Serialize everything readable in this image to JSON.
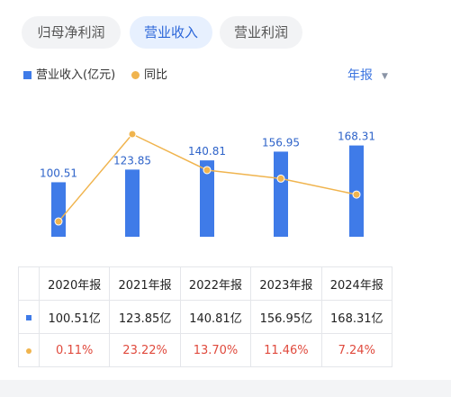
{
  "tabs": [
    {
      "label": "归母净利润",
      "active": false
    },
    {
      "label": "营业收入",
      "active": true
    },
    {
      "label": "营业利润",
      "active": false
    }
  ],
  "legend": {
    "bar_label": "营业收入(亿元)",
    "line_label": "同比"
  },
  "period": {
    "label": "年报"
  },
  "colors": {
    "bar": "#3f7be8",
    "line": "#f0b44e",
    "negative_text": "#e04a3d",
    "active_tab": "#2b66d9"
  },
  "chart_data": {
    "type": "bar",
    "categories": [
      "2020年报",
      "2021年报",
      "2022年报",
      "2023年报",
      "2024年报"
    ],
    "series": [
      {
        "name": "营业收入(亿元)",
        "type": "bar",
        "values": [
          100.51,
          123.85,
          140.81,
          156.95,
          168.31
        ]
      },
      {
        "name": "同比",
        "type": "line",
        "values": [
          0.11,
          23.22,
          13.7,
          11.46,
          7.24
        ]
      }
    ],
    "data_labels": [
      "100.51",
      "123.85",
      "140.81",
      "156.95",
      "168.31"
    ],
    "grid": false,
    "legend_position": "top-left"
  },
  "table": {
    "headers": [
      "2020年报",
      "2021年报",
      "2022年报",
      "2023年报",
      "2024年报"
    ],
    "revenue_row": [
      "100.51亿",
      "123.85亿",
      "140.81亿",
      "156.95亿",
      "168.31亿"
    ],
    "yoy_row": [
      "0.11%",
      "23.22%",
      "13.70%",
      "11.46%",
      "7.24%"
    ]
  }
}
